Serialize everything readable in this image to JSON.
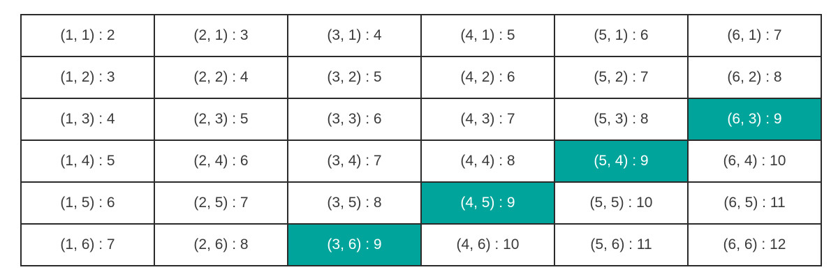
{
  "colors": {
    "highlight": "#00a49a",
    "border": "#2b2b2b",
    "text": "#3a3a3a",
    "highlight_text": "#ffffff"
  },
  "grid": {
    "rows": [
      [
        {
          "label": "(1, 1) : 2",
          "highlight": false
        },
        {
          "label": "(2, 1) : 3",
          "highlight": false
        },
        {
          "label": "(3, 1) : 4",
          "highlight": false
        },
        {
          "label": "(4, 1) : 5",
          "highlight": false
        },
        {
          "label": "(5, 1) : 6",
          "highlight": false
        },
        {
          "label": "(6, 1) : 7",
          "highlight": false
        }
      ],
      [
        {
          "label": "(1, 2) : 3",
          "highlight": false
        },
        {
          "label": "(2, 2) : 4",
          "highlight": false
        },
        {
          "label": "(3, 2) : 5",
          "highlight": false
        },
        {
          "label": "(4, 2) : 6",
          "highlight": false
        },
        {
          "label": "(5, 2) : 7",
          "highlight": false
        },
        {
          "label": "(6, 2) : 8",
          "highlight": false
        }
      ],
      [
        {
          "label": "(1, 3) : 4",
          "highlight": false
        },
        {
          "label": "(2, 3) : 5",
          "highlight": false
        },
        {
          "label": "(3, 3) : 6",
          "highlight": false
        },
        {
          "label": "(4, 3) : 7",
          "highlight": false
        },
        {
          "label": "(5, 3) : 8",
          "highlight": false
        },
        {
          "label": "(6, 3) : 9",
          "highlight": true
        }
      ],
      [
        {
          "label": "(1, 4) : 5",
          "highlight": false
        },
        {
          "label": "(2, 4) : 6",
          "highlight": false
        },
        {
          "label": "(3, 4) : 7",
          "highlight": false
        },
        {
          "label": "(4, 4) : 8",
          "highlight": false
        },
        {
          "label": "(5, 4) : 9",
          "highlight": true
        },
        {
          "label": "(6, 4) : 10",
          "highlight": false
        }
      ],
      [
        {
          "label": "(1, 5) : 6",
          "highlight": false
        },
        {
          "label": "(2, 5) : 7",
          "highlight": false
        },
        {
          "label": "(3, 5) : 8",
          "highlight": false
        },
        {
          "label": "(4, 5) : 9",
          "highlight": true
        },
        {
          "label": "(5, 5) : 10",
          "highlight": false
        },
        {
          "label": "(6, 5) : 11",
          "highlight": false
        }
      ],
      [
        {
          "label": "(1, 6) : 7",
          "highlight": false
        },
        {
          "label": "(2, 6) : 8",
          "highlight": false
        },
        {
          "label": "(3, 6) : 9",
          "highlight": true
        },
        {
          "label": "(4, 6) : 10",
          "highlight": false
        },
        {
          "label": "(5, 6) : 11",
          "highlight": false
        },
        {
          "label": "(6, 6) : 12",
          "highlight": false
        }
      ]
    ]
  }
}
